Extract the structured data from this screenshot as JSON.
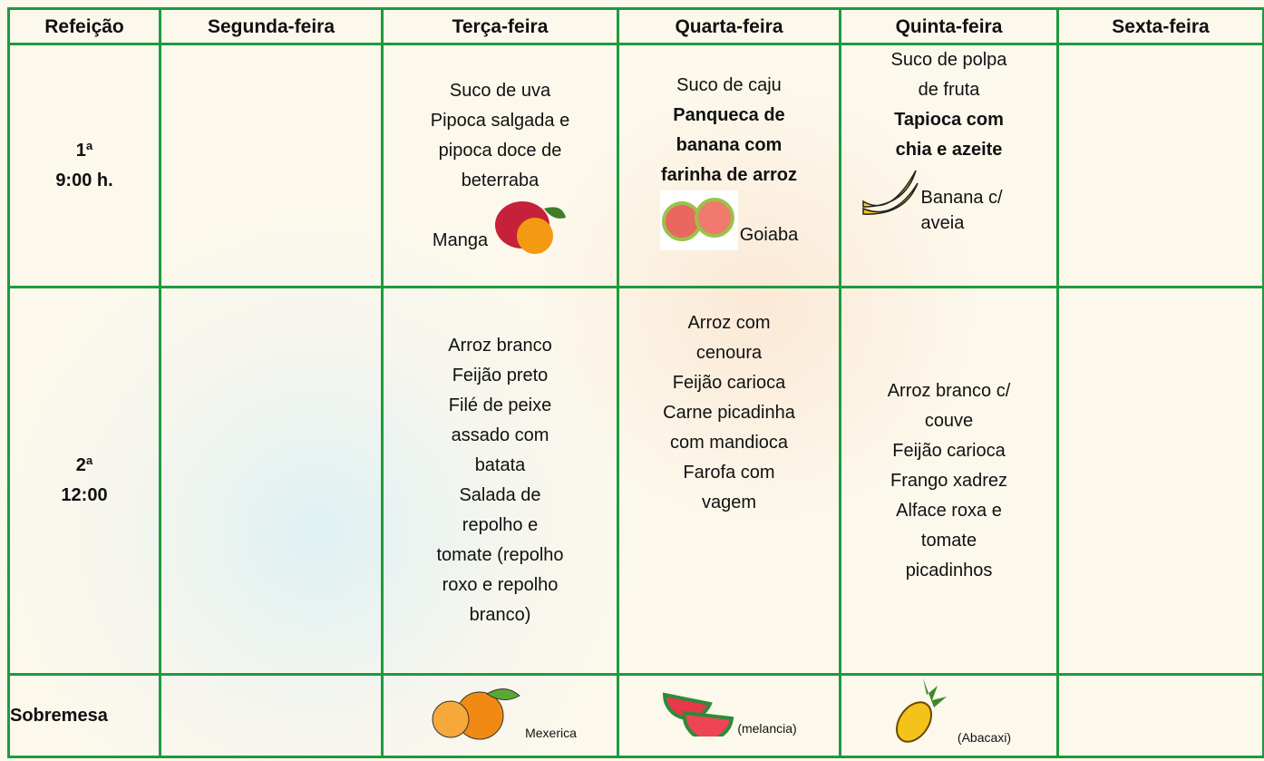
{
  "table": {
    "header": [
      "Refeição",
      "Segunda-feira",
      "Terça-feira",
      "Quarta-feira",
      "Quinta-feira",
      "Sexta-feira"
    ],
    "rows": [
      {
        "meal": [
          "1ª",
          "9:00 h."
        ],
        "tuesday": {
          "lines": [
            "Suco de uva",
            "Pipoca salgada e",
            "pipoca doce de",
            "beterraba"
          ],
          "fruit": "Manga"
        },
        "wednesday": {
          "lines": [
            "Suco de caju"
          ],
          "bold_lines": [
            "Panqueca de",
            "banana com",
            "farinha de arroz"
          ],
          "fruit": "Goiaba"
        },
        "thursday": {
          "lines": [
            "Suco de polpa",
            "de fruta"
          ],
          "bold_lines": [
            "Tapioca com",
            "chia e azeite"
          ],
          "fruit": "Banana c/ aveia"
        }
      },
      {
        "meal": [
          "2ª",
          "12:00"
        ],
        "tuesday": {
          "lines": [
            "Arroz branco",
            "Feijão preto",
            "Filé de peixe",
            "assado com",
            "batata",
            "Salada de",
            "repolho e",
            "tomate (repolho",
            "roxo e repolho",
            "branco)"
          ]
        },
        "wednesday": {
          "lines": [
            "Arroz com",
            "cenoura",
            "Feijão carioca",
            "Carne picadinha",
            "com mandioca",
            "Farofa com",
            "vagem"
          ]
        },
        "thursday": {
          "lines": [
            "Arroz branco c/",
            "couve",
            "Feijão carioca",
            "Frango xadrez",
            "Alface roxa e",
            "tomate",
            "picadinhos"
          ]
        }
      },
      {
        "meal": [
          "Sobremesa"
        ],
        "tuesday": {
          "fruit": "Mexerica"
        },
        "wednesday": {
          "fruit": "(melancia)"
        },
        "thursday": {
          "fruit": "(Abacaxi)"
        }
      }
    ]
  }
}
